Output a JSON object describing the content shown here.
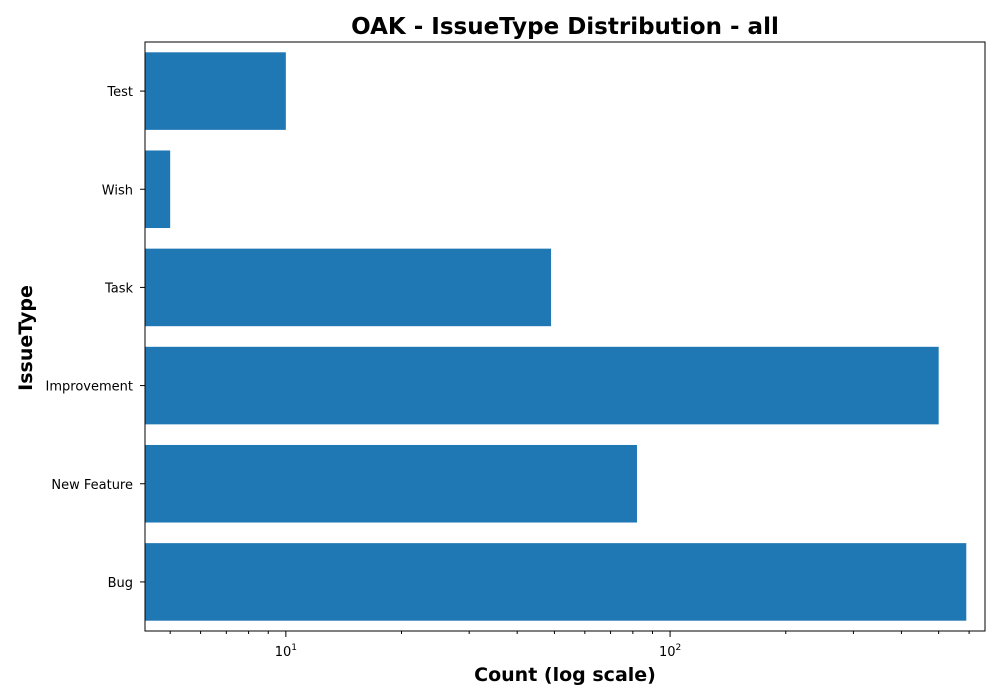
{
  "chart_data": {
    "type": "bar",
    "orientation": "horizontal",
    "title": "OAK - IssueType Distribution - all",
    "xlabel": "Count (log scale)",
    "ylabel": "IssueType",
    "x_scale": "log",
    "xlim": [
      4.3,
      660
    ],
    "categories": [
      "Bug",
      "New Feature",
      "Improvement",
      "Task",
      "Wish",
      "Test"
    ],
    "values": [
      590,
      82,
      500,
      49,
      5,
      10
    ],
    "x_ticks": [
      {
        "base": "10",
        "exp": "1",
        "value": 10
      },
      {
        "base": "10",
        "exp": "2",
        "value": 100
      }
    ],
    "grid": false,
    "legend": "none",
    "bar_color": "#1f77b4"
  }
}
